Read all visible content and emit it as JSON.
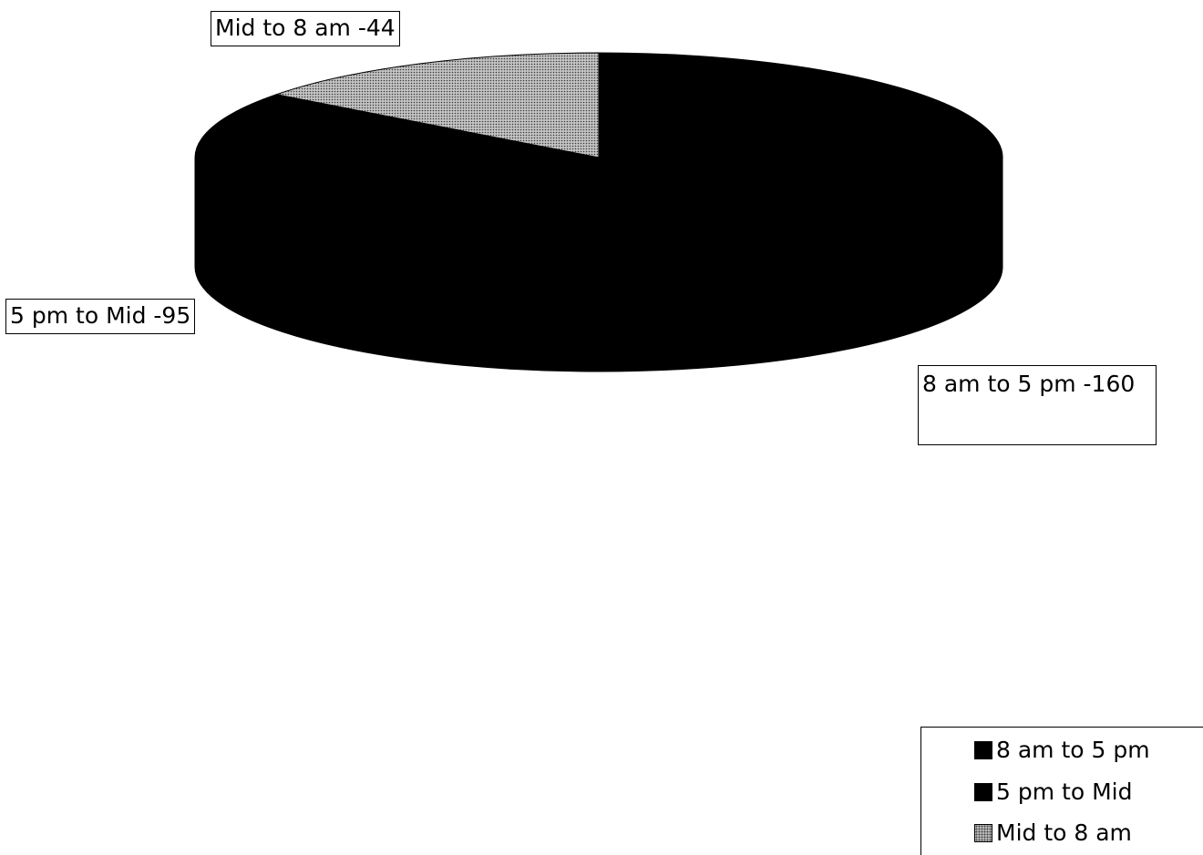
{
  "chart_data": {
    "type": "pie",
    "three_d": true,
    "title": "",
    "categories": [
      "8 am to 5 pm",
      "5 pm to Mid",
      "Mid to 8 am"
    ],
    "values": [
      160,
      95,
      44
    ],
    "data_labels": [
      "8 am to 5 pm -160",
      "5 pm to Mid -95",
      "Mid to 8 am -44"
    ],
    "colors": [
      "#000000",
      "#000000",
      "#bdbdbd"
    ],
    "patterns": [
      "solid",
      "solid",
      "dotted"
    ],
    "legend": {
      "position": "bottom-right",
      "items": [
        "8 am to 5 pm",
        "5 pm to Mid",
        "Mid to 8 am"
      ]
    }
  }
}
